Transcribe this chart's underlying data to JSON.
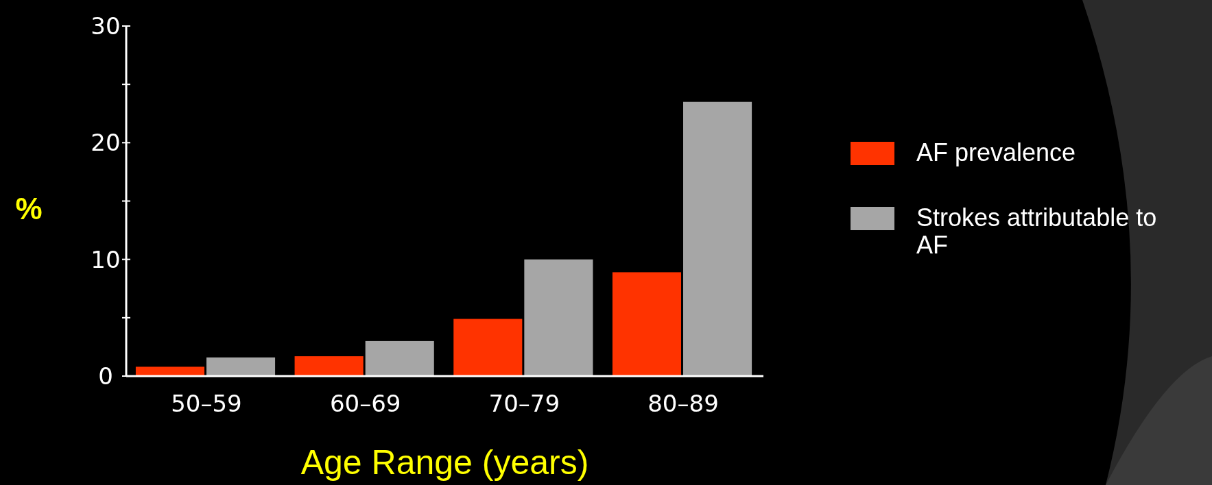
{
  "chart_data": {
    "type": "bar",
    "xlabel": "Age Range (years)",
    "ylabel": "%",
    "categories": [
      "50–59",
      "60–69",
      "70–79",
      "80–89"
    ],
    "series": [
      {
        "name": "AF prevalence",
        "color": "#ff3300",
        "values": [
          0.8,
          1.7,
          4.9,
          8.9
        ]
      },
      {
        "name": "Strokes attributable to AF",
        "color": "#a6a6a6",
        "values": [
          1.6,
          3.0,
          10.0,
          23.5
        ]
      }
    ],
    "ylim": [
      0,
      30
    ],
    "yticks": [
      0,
      {
        "value": 5,
        "label": null
      },
      10,
      {
        "value": 15,
        "label": null
      },
      20,
      {
        "value": 25,
        "label": null
      },
      30
    ],
    "grid": false,
    "legend": "right"
  }
}
